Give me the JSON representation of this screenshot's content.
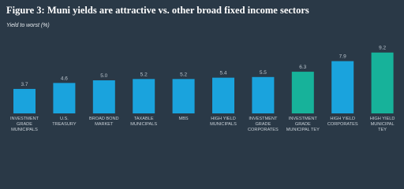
{
  "chart_data": {
    "type": "bar",
    "title": "Figure 3: Muni yields are attractive vs. other broad fixed income sectors",
    "subtitle": "Yield to worst (%)",
    "categories": [
      "INVESTMENT\nGRADE\nMUNICIPALS",
      "U.S.\nTREASURY",
      "BROAD BOND\nMARKET",
      "TAXABLE\nMUNICIPALS",
      "MBS",
      "HIGH YIELD\nMUNICIPALS",
      "INVESTMENT\nGRADE\nCORPORATES",
      "INVESTMENT\nGRADE\nMUNICIPAL TEY",
      "HIGH YIELD\nCORPORATES",
      "HIGH YIELD\nMUNICIPAL\nTEY"
    ],
    "values": [
      3.7,
      4.6,
      5.0,
      5.2,
      5.2,
      5.4,
      5.5,
      6.3,
      7.9,
      9.2
    ],
    "value_labels": [
      "3.7",
      "4.6",
      "5.0",
      "5.2",
      "5.2",
      "5.4",
      "5.5",
      "6.3",
      "7.9",
      "9.2"
    ],
    "colors": [
      "#1aa3dd",
      "#1aa3dd",
      "#1aa3dd",
      "#1aa3dd",
      "#1aa3dd",
      "#1aa3dd",
      "#1aa3dd",
      "#17b29a",
      "#1aa3dd",
      "#17b29a"
    ]
  }
}
